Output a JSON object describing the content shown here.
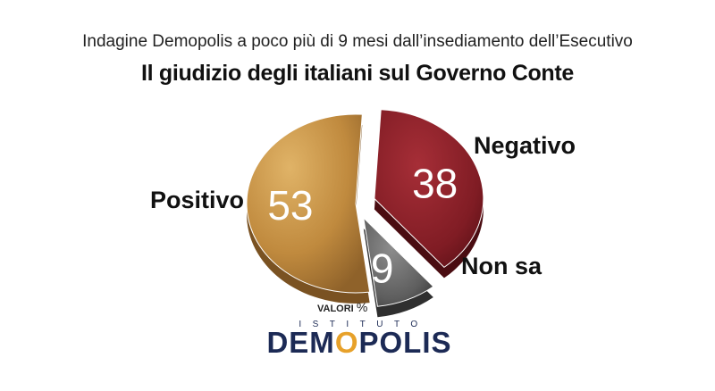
{
  "header": {
    "subtitle": "Indagine Demopolis a poco più di 9 mesi dall’insediamento dell’Esecutivo",
    "title": "Il giudizio degli italiani sul Governo Conte"
  },
  "unit_note": {
    "text": "VALORI",
    "symbol": "%"
  },
  "logo": {
    "top_text": "ISTITUTO",
    "main_pre": "DEM",
    "main_o": "O",
    "main_post": "POLIS"
  },
  "colors": {
    "positivo": "#c89548",
    "negativo": "#8b1f27",
    "non_sa": "#6e6e6e",
    "brand": "#1c2a55",
    "accent": "#e7a12a"
  },
  "chart_data": {
    "type": "pie",
    "title": "Il giudizio degli italiani sul Governo Conte",
    "unit": "%",
    "slices": [
      {
        "label": "Negativo",
        "value": 38
      },
      {
        "label": "Non sa",
        "value": 9
      },
      {
        "label": "Positivo",
        "value": 53
      }
    ]
  }
}
